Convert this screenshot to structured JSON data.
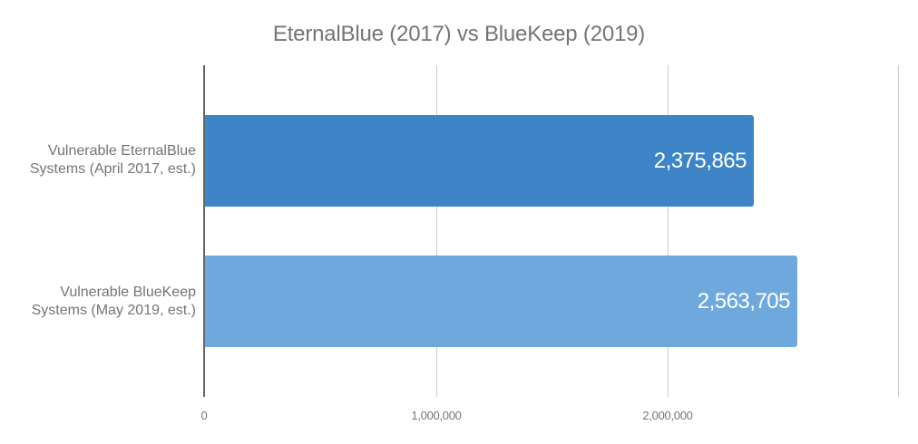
{
  "chart_data": {
    "type": "bar",
    "orientation": "horizontal",
    "title": "EternalBlue (2017) vs BlueKeep (2019)",
    "categories": [
      "Vulnerable EternalBlue Systems (April 2017, est.)",
      "Vulnerable BlueKeep Systems (May 2019, est.)"
    ],
    "category_lines": [
      [
        "Vulnerable EternalBlue",
        "Systems (April 2017, est.)"
      ],
      [
        "Vulnerable BlueKeep",
        "Systems (May 2019, est.)"
      ]
    ],
    "values": [
      2375865,
      2563705
    ],
    "value_labels": [
      "2,375,865",
      "2,563,705"
    ],
    "bar_colors": [
      "#3d85c6",
      "#6fa8dc"
    ],
    "xlabel": "",
    "ylabel": "",
    "xlim": [
      0,
      3000000
    ],
    "x_ticks": [
      0,
      1000000,
      2000000,
      3000000
    ],
    "x_tick_labels": [
      "0",
      "1,000,000",
      "2,000,000",
      ""
    ],
    "grid": true,
    "legend": "none"
  }
}
